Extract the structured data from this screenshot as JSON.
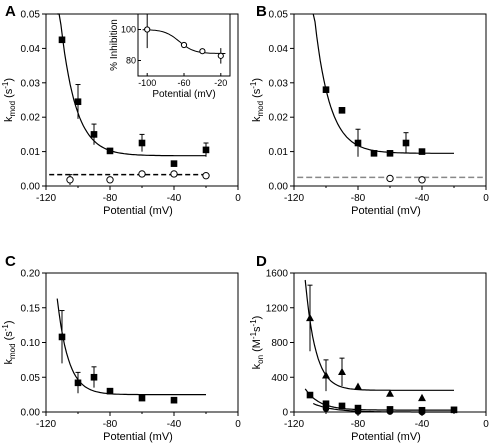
{
  "chart_data": [
    {
      "panel": "A",
      "type": "scatter",
      "xlabel": "Potential (mV)",
      "ylabel": "k_mod (s^-1)",
      "ylabel_main": "k",
      "ylabel_sub": "mod",
      "ylabel_unit": "(s",
      "ylabel_exp": "-1",
      "ylabel_close": ")",
      "xlim": [
        -120,
        0
      ],
      "ylim": [
        0,
        0.05
      ],
      "xticks": [
        -120,
        -80,
        -40,
        0
      ],
      "yticks": [
        0.0,
        0.01,
        0.02,
        0.03,
        0.04,
        0.05
      ],
      "xtick_labels": [
        "-120",
        "-80",
        "-40",
        "0"
      ],
      "ytick_labels": [
        "0.00",
        "0.01",
        "0.02",
        "0.03",
        "0.04",
        "0.05"
      ],
      "series": [
        {
          "marker": "square-filled",
          "points": [
            {
              "x": -110,
              "y": 0.0425
            },
            {
              "x": -100,
              "y": 0.0245,
              "err": 0.005
            },
            {
              "x": -90,
              "y": 0.015,
              "err": 0.003
            },
            {
              "x": -80,
              "y": 0.0102
            },
            {
              "x": -60,
              "y": 0.0125,
              "err": 0.0025
            },
            {
              "x": -40,
              "y": 0.0065
            },
            {
              "x": -20,
              "y": 0.0105,
              "err": 0.002
            }
          ],
          "fit": {
            "type": "exp_decay",
            "x_from": -113,
            "x_to": -20,
            "y_inf": 0.0088,
            "A": 0.0355,
            "tau": 9.5,
            "x0": -110
          },
          "fit_style": "solid"
        },
        {
          "marker": "circle-open",
          "points": [
            {
              "x": -105,
              "y": 0.0018,
              "err": 0.0015
            },
            {
              "x": -80,
              "y": 0.0018
            },
            {
              "x": -60,
              "y": 0.0035
            },
            {
              "x": -40,
              "y": 0.0035
            },
            {
              "x": -20,
              "y": 0.003
            }
          ],
          "fit": {
            "type": "constant",
            "x_from": -118,
            "x_to": -20,
            "y": 0.0033
          },
          "fit_style": "dashed"
        }
      ],
      "inset": {
        "xlabel": "Potential (mV)",
        "ylabel": "% Inhibition",
        "xlim": [
          -110,
          -10
        ],
        "ylim": [
          70,
          110
        ],
        "xticks": [
          -100,
          -60,
          -20
        ],
        "yticks": [
          80,
          100
        ],
        "xtick_labels": [
          "-100",
          "-60",
          "-20"
        ],
        "ytick_labels": [
          "80",
          "100"
        ],
        "points": [
          {
            "x": -100,
            "y": 100,
            "err": 12
          },
          {
            "x": -60,
            "y": 90
          },
          {
            "x": -40,
            "y": 86
          },
          {
            "x": -20,
            "y": 83,
            "err": 5
          }
        ],
        "fit": {
          "type": "sigmoid",
          "top": 100,
          "bottom": 84.5,
          "mid": -65,
          "slope": 8
        }
      }
    },
    {
      "panel": "B",
      "type": "scatter",
      "xlabel": "Potential (mV)",
      "ylabel": "k_mod (s^-1)",
      "ylabel_main": "k",
      "ylabel_sub": "mod",
      "ylabel_unit": "(s",
      "ylabel_exp": "-1",
      "ylabel_close": ")",
      "xlim": [
        -120,
        0
      ],
      "ylim": [
        0,
        0.05
      ],
      "xticks": [
        -120,
        -80,
        -40,
        0
      ],
      "yticks": [
        0.0,
        0.01,
        0.02,
        0.03,
        0.04,
        0.05
      ],
      "xtick_labels": [
        "-120",
        "-80",
        "-40",
        "0"
      ],
      "ytick_labels": [
        "0.00",
        "0.01",
        "0.02",
        "0.03",
        "0.04",
        "0.05"
      ],
      "series": [
        {
          "marker": "square-filled",
          "points": [
            {
              "x": -100,
              "y": 0.028
            },
            {
              "x": -90,
              "y": 0.022
            },
            {
              "x": -80,
              "y": 0.0125,
              "err": 0.004
            },
            {
              "x": -70,
              "y": 0.0095
            },
            {
              "x": -60,
              "y": 0.0095
            },
            {
              "x": -50,
              "y": 0.0125,
              "err": 0.003
            },
            {
              "x": -40,
              "y": 0.01
            }
          ],
          "fit": {
            "type": "exp_decay",
            "x_from": -108,
            "x_to": -20,
            "y_inf": 0.0095,
            "A": 0.0185,
            "tau": 9.5,
            "x0": -100
          },
          "fit_style": "solid"
        },
        {
          "marker": "circle-open",
          "points": [
            {
              "x": -60,
              "y": 0.0022
            },
            {
              "x": -40,
              "y": 0.0018
            }
          ],
          "fit": {
            "type": "constant",
            "x_from": -118,
            "x_to": -2,
            "y": 0.0025
          },
          "fit_style": "dashed-gray"
        }
      ]
    },
    {
      "panel": "C",
      "type": "scatter",
      "xlabel": "Potential (mV)",
      "ylabel": "k_mod (s^-1)",
      "ylabel_main": "k",
      "ylabel_sub": "mod",
      "ylabel_unit": "(s",
      "ylabel_exp": "-1",
      "ylabel_close": ")",
      "xlim": [
        -120,
        0
      ],
      "ylim": [
        0,
        0.2
      ],
      "xticks": [
        -120,
        -80,
        -40,
        0
      ],
      "yticks": [
        0.0,
        0.05,
        0.1,
        0.15,
        0.2
      ],
      "xtick_labels": [
        "-120",
        "-80",
        "-40",
        "0"
      ],
      "ytick_labels": [
        "0.00",
        "0.05",
        "0.10",
        "0.15",
        "0.20"
      ],
      "series": [
        {
          "marker": "square-filled",
          "points": [
            {
              "x": -110,
              "y": 0.108,
              "err": 0.038
            },
            {
              "x": -100,
              "y": 0.042,
              "err": 0.015
            },
            {
              "x": -90,
              "y": 0.05,
              "err": 0.015
            },
            {
              "x": -80,
              "y": 0.03
            },
            {
              "x": -60,
              "y": 0.02
            },
            {
              "x": -40,
              "y": 0.017
            }
          ],
          "fit": {
            "type": "exp_decay",
            "x_from": -113,
            "x_to": -20,
            "y_inf": 0.025,
            "A": 0.09,
            "tau": 7,
            "x0": -110
          },
          "fit_style": "solid"
        }
      ]
    },
    {
      "panel": "D",
      "type": "scatter",
      "xlabel": "Potential (mV)",
      "ylabel": "k_on (M^-1 s^-1)",
      "ylabel_main": "k",
      "ylabel_sub": "on",
      "ylabel_unit": "(M",
      "ylabel_exp": "-1",
      "ylabel_unit2": "s",
      "ylabel_exp2": "-1",
      "ylabel_close": ")",
      "xlim": [
        -120,
        0
      ],
      "ylim": [
        0,
        1600
      ],
      "xticks": [
        -120,
        -80,
        -40,
        0
      ],
      "yticks": [
        0,
        400,
        800,
        1200,
        1600
      ],
      "xtick_labels": [
        "-120",
        "-80",
        "-40",
        "0"
      ],
      "ytick_labels": [
        "0",
        "400",
        "800",
        "1200",
        "1600"
      ],
      "series": [
        {
          "marker": "triangle-filled",
          "points": [
            {
              "x": -110,
              "y": 1080,
              "err": 380
            },
            {
              "x": -100,
              "y": 420,
              "err": 180
            },
            {
              "x": -90,
              "y": 460,
              "err": 160
            },
            {
              "x": -80,
              "y": 290
            },
            {
              "x": -60,
              "y": 210
            },
            {
              "x": -40,
              "y": 160
            }
          ],
          "fit": {
            "type": "exp_decay",
            "x_from": -113,
            "x_to": -20,
            "y_inf": 250,
            "A": 800,
            "tau": 6.5,
            "x0": -110
          },
          "fit_style": "solid"
        },
        {
          "marker": "square-filled",
          "points": [
            {
              "x": -110,
              "y": 195
            },
            {
              "x": -100,
              "y": 95
            },
            {
              "x": -90,
              "y": 70
            },
            {
              "x": -80,
              "y": 45
            },
            {
              "x": -60,
              "y": 30
            },
            {
              "x": -40,
              "y": 20
            },
            {
              "x": -20,
              "y": 25
            }
          ],
          "fit": {
            "type": "exp_decay",
            "x_from": -113,
            "x_to": -20,
            "y_inf": 22,
            "A": 175,
            "tau": 9,
            "x0": -110
          },
          "fit_style": "solid"
        },
        {
          "marker": "circle-filled",
          "points": [
            {
              "x": -100,
              "y": 40
            },
            {
              "x": -80,
              "y": 5
            },
            {
              "x": -60,
              "y": 5
            },
            {
              "x": -40,
              "y": 0
            }
          ],
          "fit": {
            "type": "exp_decay",
            "x_from": -108,
            "x_to": -20,
            "y_inf": 0,
            "A": 50,
            "tau": 12,
            "x0": -100
          },
          "fit_style": "solid"
        }
      ]
    }
  ]
}
